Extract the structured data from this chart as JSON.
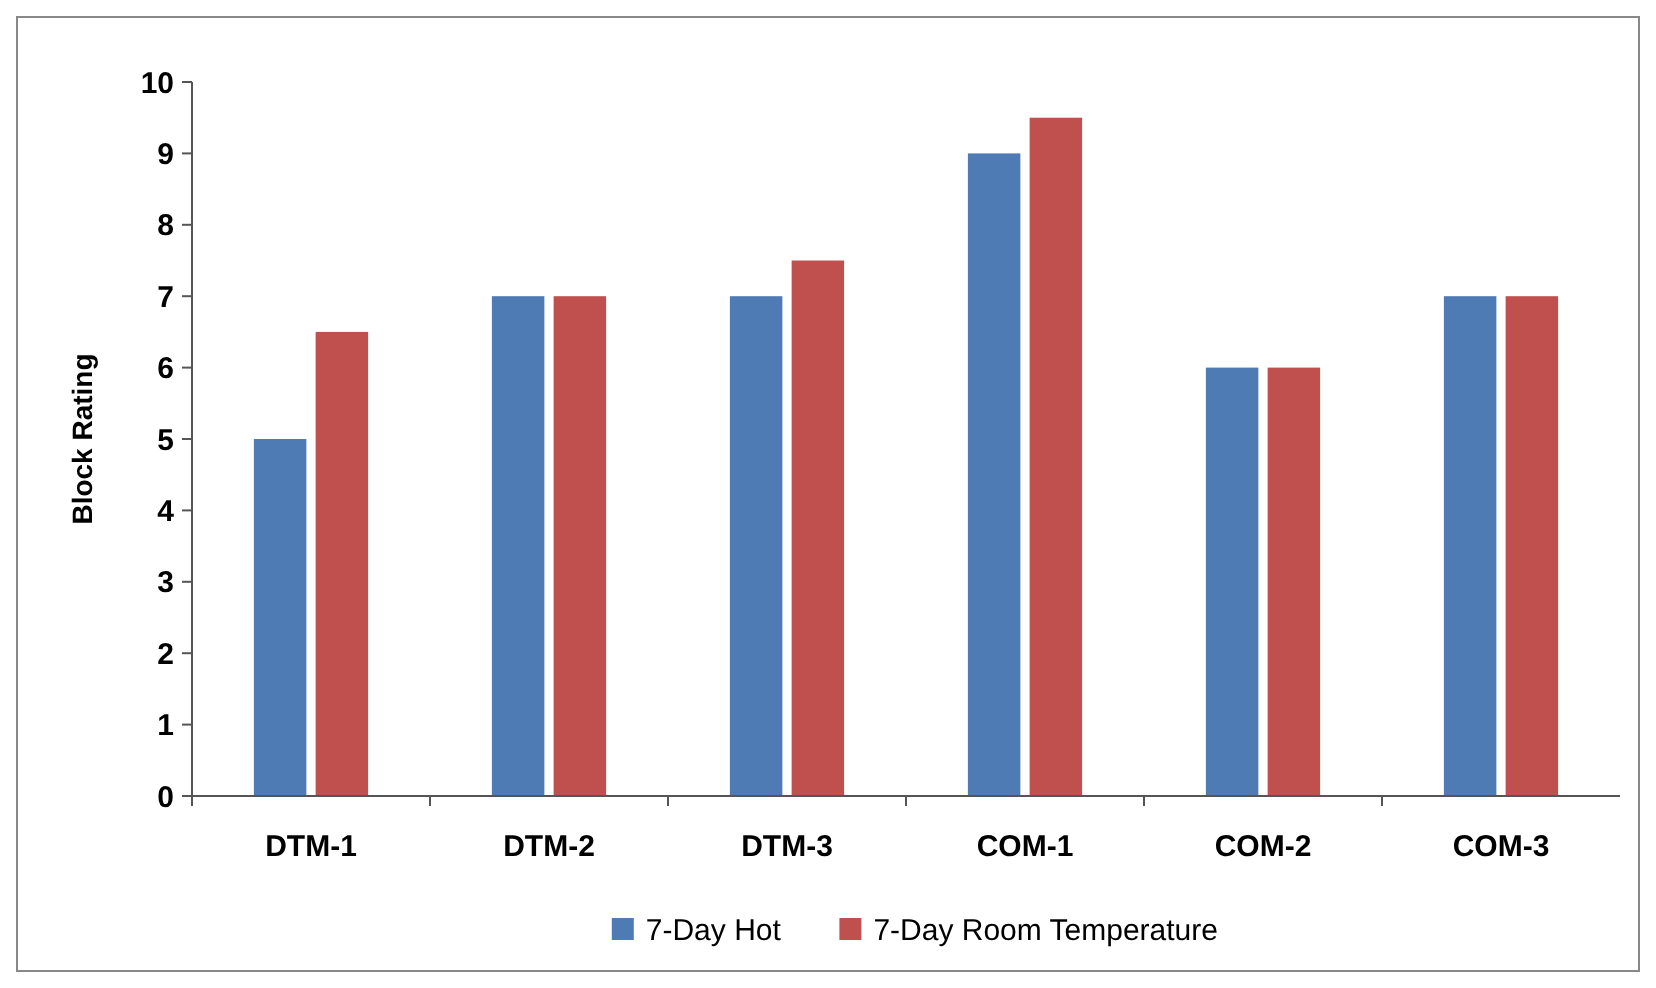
{
  "chart_data": {
    "type": "bar",
    "categories": [
      "DTM-1",
      "DTM-2",
      "DTM-3",
      "COM-1",
      "COM-2",
      "COM-3"
    ],
    "series": [
      {
        "name": "7-Day Hot",
        "color": "#4f7bb5",
        "values": [
          5,
          7,
          7,
          9,
          6,
          7
        ]
      },
      {
        "name": "7-Day Room Temperature",
        "color": "#c0504d",
        "values": [
          6.5,
          7,
          7.5,
          9.5,
          6,
          7
        ]
      }
    ],
    "ylabel": "Block Rating",
    "ylim": [
      0,
      10
    ],
    "yticks": [
      0,
      1,
      2,
      3,
      4,
      5,
      6,
      7,
      8,
      9,
      10
    ],
    "grid": false,
    "legend": "bottom"
  }
}
